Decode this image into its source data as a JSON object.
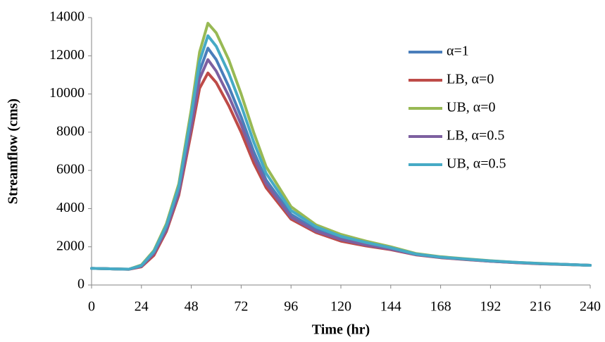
{
  "chart_data": {
    "type": "line",
    "x_label": "Time (hr)",
    "y_label": "Streamflow (cms)",
    "x": [
      0,
      6,
      12,
      18,
      24,
      30,
      36,
      42,
      48,
      52,
      56,
      60,
      66,
      72,
      78,
      84,
      96,
      108,
      120,
      132,
      144,
      156,
      168,
      180,
      192,
      204,
      216,
      228,
      240
    ],
    "series": [
      {
        "name": "α=1",
        "color": "#4a7ebb",
        "values": [
          870,
          860,
          840,
          830,
          1000,
          1700,
          3000,
          5000,
          8500,
          11200,
          12400,
          11800,
          10400,
          8800,
          7000,
          5500,
          3700,
          2900,
          2450,
          2150,
          1900,
          1600,
          1450,
          1350,
          1250,
          1180,
          1120,
          1080,
          1030
        ]
      },
      {
        "name": "LB, α=0",
        "color": "#be4b48",
        "values": [
          870,
          860,
          840,
          820,
          950,
          1550,
          2800,
          4700,
          8000,
          10300,
          11100,
          10600,
          9400,
          8000,
          6400,
          5100,
          3450,
          2750,
          2300,
          2050,
          1850,
          1580,
          1430,
          1330,
          1240,
          1170,
          1110,
          1070,
          1030
        ]
      },
      {
        "name": "UB, α=0",
        "color": "#98b954",
        "values": [
          870,
          860,
          840,
          830,
          1050,
          1800,
          3200,
          5300,
          9200,
          12200,
          13700,
          13200,
          11800,
          10000,
          8000,
          6200,
          4100,
          3150,
          2650,
          2300,
          2000,
          1650,
          1480,
          1370,
          1270,
          1190,
          1130,
          1080,
          1030
        ]
      },
      {
        "name": "LB, α=0.5",
        "color": "#7d60a0",
        "values": [
          870,
          860,
          840,
          825,
          980,
          1650,
          2900,
          4850,
          8300,
          10800,
          11800,
          11200,
          9900,
          8400,
          6700,
          5300,
          3550,
          2820,
          2380,
          2100,
          1880,
          1590,
          1440,
          1340,
          1245,
          1175,
          1115,
          1075,
          1030
        ]
      },
      {
        "name": "UB, α=0.5",
        "color": "#46aac5",
        "values": [
          870,
          860,
          840,
          830,
          1020,
          1750,
          3100,
          5150,
          8900,
          11700,
          13050,
          12500,
          11100,
          9400,
          7500,
          5850,
          3900,
          3050,
          2550,
          2230,
          1950,
          1620,
          1460,
          1360,
          1260,
          1185,
          1125,
          1080,
          1030
        ]
      }
    ],
    "xlim": [
      0,
      240
    ],
    "xticks": [
      0,
      24,
      48,
      72,
      96,
      120,
      144,
      168,
      192,
      216,
      240
    ],
    "ylim": [
      0,
      14000
    ],
    "yticks": [
      0,
      2000,
      4000,
      6000,
      8000,
      10000,
      12000,
      14000
    ],
    "grid": false,
    "legend": "upper right"
  }
}
